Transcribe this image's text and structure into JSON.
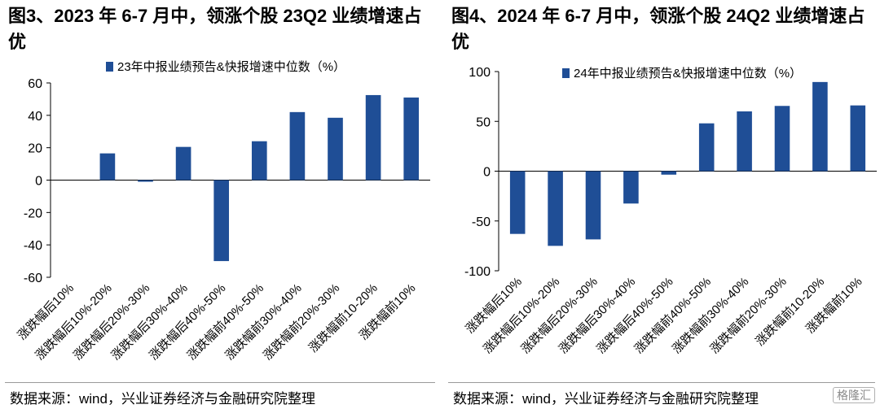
{
  "charts": [
    {
      "figure_title": "图3、2023 年 6-7 月中，领涨个股 23Q2 业绩增速占优",
      "source": "数据来源：wind，兴业证券经济与金融研究院整理"
    },
    {
      "figure_title": "图4、2024 年 6-7 月中，领涨个股 24Q2 业绩增速占优",
      "source": "数据来源：wind，兴业证券经济与金融研究院整理"
    }
  ],
  "watermark": "格隆汇",
  "colors": {
    "bar": "#1f4e96",
    "axis": "#000000"
  },
  "chart_data": [
    {
      "type": "bar",
      "categories": [
        "涨跌幅后10%",
        "涨跌幅后10%-20%",
        "涨跌幅后20%-30%",
        "涨跌幅后30%-40%",
        "涨跌幅后40%-50%",
        "涨跌幅前40%-50%",
        "涨跌幅前30%-40%",
        "涨跌幅前20%-30%",
        "涨跌幅前10-20%",
        "涨跌幅前10%"
      ],
      "series": [
        {
          "name": "23年中报业绩预告&快报增速中位数（%）",
          "values": [
            null,
            16.5,
            -1,
            20.5,
            -50,
            24,
            42,
            38.5,
            52.5,
            51
          ]
        }
      ],
      "yticks": [
        -60,
        -40,
        -20,
        0,
        20,
        40,
        60
      ],
      "ylim": [
        -60,
        60
      ],
      "legend": "top",
      "grid": false
    },
    {
      "type": "bar",
      "categories": [
        "涨跌幅后10%",
        "涨跌幅后10%-20%",
        "涨跌幅后20%-30%",
        "涨跌幅后30%-40%",
        "涨跌幅后40%-50%",
        "涨跌幅前40%-50%",
        "涨跌幅前30%-40%",
        "涨跌幅前20%-30%",
        "涨跌幅前10-20%",
        "涨跌幅前10%"
      ],
      "series": [
        {
          "name": "24年中报业绩预告&快报增速中位数（%）",
          "values": [
            -63,
            -75,
            -68.5,
            -32.5,
            -3.5,
            48,
            60,
            65.5,
            89.5,
            66
          ]
        }
      ],
      "yticks": [
        -100,
        -50,
        0,
        50,
        100
      ],
      "ylim": [
        -100,
        100
      ],
      "legend": "top",
      "grid": false
    }
  ]
}
